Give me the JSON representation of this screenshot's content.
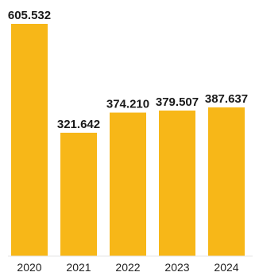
{
  "chart_data": {
    "type": "bar",
    "categories": [
      "2020",
      "2021",
      "2022",
      "2023",
      "2024"
    ],
    "values": [
      605532,
      321642,
      374210,
      379507,
      387637
    ],
    "value_labels": [
      "605.532",
      "321.642",
      "374.210",
      "379.507",
      "387.637"
    ],
    "title": "",
    "xlabel": "",
    "ylabel": "",
    "ylim": [
      0,
      605532
    ],
    "grid": false,
    "legend": "none",
    "bar_color": "#F7B718",
    "text_color": "#1a1a1a"
  }
}
